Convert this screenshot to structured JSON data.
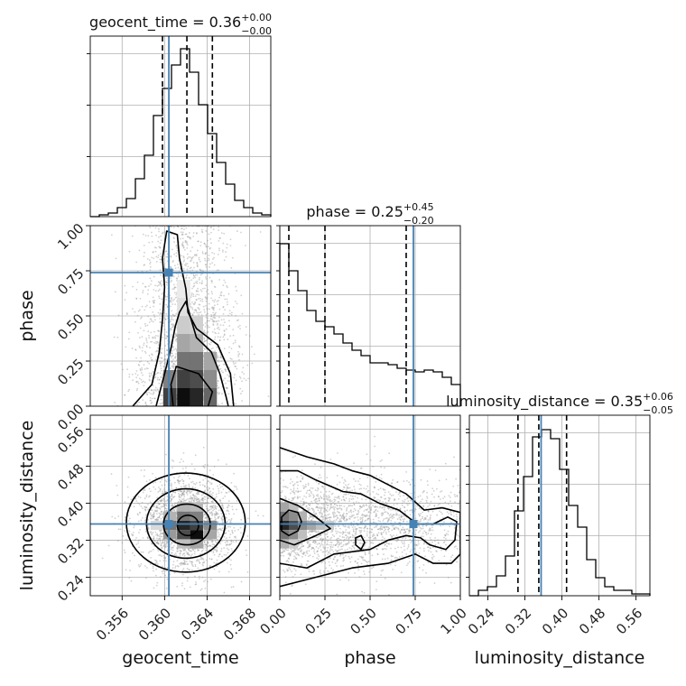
{
  "chart_data": {
    "type": "corner",
    "colors": {
      "truth": "#4682b4",
      "hist": "#000000",
      "grid": "#b0b0b0",
      "points": "#9a9a9a"
    },
    "parameters": [
      {
        "name": "geocent_time",
        "range": [
          0.353,
          0.37
        ],
        "ticks": [
          0.356,
          0.36,
          0.364,
          0.368
        ],
        "tick_labels": [
          "0.356",
          "0.360",
          "0.364",
          "0.368"
        ],
        "truth": 0.3604,
        "quantiles": [
          0.3598,
          0.3621,
          0.3645
        ],
        "title_prefix": "geocent_time = ",
        "title_median": "0.36",
        "title_plus": "+0.00",
        "title_minus": "−0.00",
        "hist_counts": [
          0,
          1,
          2,
          5,
          10,
          21,
          34,
          56,
          71,
          84,
          93,
          80,
          62,
          46,
          30,
          18,
          9,
          5,
          2,
          1
        ],
        "hist_ymax": 100
      },
      {
        "name": "phase",
        "range": [
          0,
          1
        ],
        "ticks": [
          0,
          0.25,
          0.5,
          0.75,
          1.0
        ],
        "tick_labels": [
          "0.00",
          "0.25",
          "0.50",
          "0.75",
          "1.00"
        ],
        "truth": 0.74,
        "quantiles": [
          0.05,
          0.25,
          0.7
        ],
        "title_prefix": "phase = ",
        "title_median": "0.25",
        "title_plus": "+0.45",
        "title_minus": "−0.20",
        "hist_counts": [
          90,
          75,
          64,
          53,
          47,
          44,
          40,
          35,
          31,
          28,
          24,
          24,
          23,
          21,
          20,
          19,
          20,
          19,
          16,
          12
        ],
        "hist_ymax": 100
      },
      {
        "name": "luminosity_distance",
        "range": [
          0.2,
          0.59
        ],
        "ticks": [
          0.24,
          0.32,
          0.4,
          0.48,
          0.56
        ],
        "tick_labels": [
          "0.24",
          "0.32",
          "0.40",
          "0.48",
          "0.56"
        ],
        "truth": 0.355,
        "quantiles": [
          0.305,
          0.35,
          0.41
        ],
        "title_prefix": "luminosity_distance = ",
        "title_median": "0.35",
        "title_plus": "+0.06",
        "title_minus": "−0.05",
        "hist_counts": [
          0,
          3,
          5,
          11,
          22,
          47,
          66,
          88,
          92,
          87,
          70,
          50,
          38,
          20,
          10,
          5,
          3,
          3,
          1,
          1
        ],
        "hist_ymax": 100
      }
    ],
    "pairs": [
      {
        "x_param": "geocent_time",
        "y_param": "phase",
        "cells": [
          {
            "x": 0.3605,
            "y": 0.05,
            "v": 0.75
          },
          {
            "x": 0.3618,
            "y": 0.05,
            "v": 0.95
          },
          {
            "x": 0.363,
            "y": 0.05,
            "v": 0.85
          },
          {
            "x": 0.3643,
            "y": 0.05,
            "v": 0.6
          },
          {
            "x": 0.3618,
            "y": 0.15,
            "v": 0.75
          },
          {
            "x": 0.363,
            "y": 0.15,
            "v": 0.7
          },
          {
            "x": 0.3643,
            "y": 0.15,
            "v": 0.45
          },
          {
            "x": 0.3605,
            "y": 0.15,
            "v": 0.5
          },
          {
            "x": 0.3618,
            "y": 0.25,
            "v": 0.55
          },
          {
            "x": 0.363,
            "y": 0.25,
            "v": 0.55
          },
          {
            "x": 0.3643,
            "y": 0.25,
            "v": 0.35
          },
          {
            "x": 0.3618,
            "y": 0.35,
            "v": 0.35
          },
          {
            "x": 0.363,
            "y": 0.35,
            "v": 0.3
          },
          {
            "x": 0.3618,
            "y": 0.45,
            "v": 0.2
          },
          {
            "x": 0.363,
            "y": 0.45,
            "v": 0.18
          },
          {
            "x": 0.3618,
            "y": 0.55,
            "v": 0.12
          },
          {
            "x": 0.3618,
            "y": 0.65,
            "v": 0.08
          },
          {
            "x": 0.3605,
            "y": 0.05,
            "v": 0.75
          }
        ],
        "contours": [
          [
            [
              0.3608,
              0.0
            ],
            [
              0.3606,
              0.12
            ],
            [
              0.3611,
              0.22
            ],
            [
              0.3632,
              0.18
            ],
            [
              0.3645,
              0.08
            ],
            [
              0.3641,
              0.0
            ]
          ],
          [
            [
              0.3592,
              0.0
            ],
            [
              0.36,
              0.18
            ],
            [
              0.3606,
              0.32
            ],
            [
              0.361,
              0.44
            ],
            [
              0.3614,
              0.52
            ],
            [
              0.362,
              0.58
            ],
            [
              0.3624,
              0.5
            ],
            [
              0.363,
              0.38
            ],
            [
              0.3644,
              0.3
            ],
            [
              0.3652,
              0.18
            ],
            [
              0.3658,
              0.05
            ],
            [
              0.366,
              0.0
            ]
          ],
          [
            [
              0.357,
              0.0
            ],
            [
              0.3588,
              0.12
            ],
            [
              0.3595,
              0.3
            ],
            [
              0.3598,
              0.48
            ],
            [
              0.36,
              0.66
            ],
            [
              0.3598,
              0.82
            ],
            [
              0.3602,
              0.97
            ],
            [
              0.3612,
              0.95
            ],
            [
              0.3614,
              0.82
            ],
            [
              0.362,
              0.65
            ],
            [
              0.3622,
              0.52
            ],
            [
              0.363,
              0.43
            ],
            [
              0.365,
              0.34
            ],
            [
              0.3662,
              0.18
            ],
            [
              0.3665,
              0.0
            ]
          ]
        ],
        "n_points": 2200,
        "x_mean": 0.3621,
        "x_sd": 0.0022,
        "y_kind": "halfnormal",
        "y_scale": 0.45
      },
      {
        "x_param": "geocent_time",
        "y_param": "luminosity_distance",
        "cells": [
          {
            "x": 0.3618,
            "y": 0.352,
            "v": 0.85
          },
          {
            "x": 0.363,
            "y": 0.332,
            "v": 0.95
          },
          {
            "x": 0.3618,
            "y": 0.332,
            "v": 0.7
          },
          {
            "x": 0.363,
            "y": 0.352,
            "v": 0.75
          },
          {
            "x": 0.3605,
            "y": 0.352,
            "v": 0.55
          },
          {
            "x": 0.3643,
            "y": 0.352,
            "v": 0.45
          },
          {
            "x": 0.3618,
            "y": 0.372,
            "v": 0.55
          },
          {
            "x": 0.363,
            "y": 0.372,
            "v": 0.5
          },
          {
            "x": 0.3605,
            "y": 0.332,
            "v": 0.4
          },
          {
            "x": 0.3643,
            "y": 0.332,
            "v": 0.35
          },
          {
            "x": 0.3605,
            "y": 0.372,
            "v": 0.3
          },
          {
            "x": 0.3618,
            "y": 0.392,
            "v": 0.3
          },
          {
            "x": 0.363,
            "y": 0.392,
            "v": 0.28
          },
          {
            "x": 0.363,
            "y": 0.312,
            "v": 0.35
          },
          {
            "x": 0.3618,
            "y": 0.312,
            "v": 0.25
          },
          {
            "x": 0.3593,
            "y": 0.352,
            "v": 0.15
          }
        ],
        "ellipses": [
          {
            "cx": 0.3622,
            "cy": 0.352,
            "rx": 0.001,
            "ry": 0.022
          },
          {
            "cx": 0.3621,
            "cy": 0.354,
            "rx": 0.0022,
            "ry": 0.044
          },
          {
            "cx": 0.362,
            "cy": 0.356,
            "rx": 0.0037,
            "ry": 0.075
          },
          {
            "cx": 0.362,
            "cy": 0.358,
            "rx": 0.0056,
            "ry": 0.107
          }
        ],
        "n_points": 2200,
        "x_mean": 0.3621,
        "x_sd": 0.0022,
        "y_kind": "normal",
        "y_mean": 0.355,
        "y_sd": 0.05
      },
      {
        "x_param": "phase",
        "y_param": "luminosity_distance",
        "cells": [
          {
            "x": 0.025,
            "y": 0.352,
            "v": 0.85
          },
          {
            "x": 0.075,
            "y": 0.352,
            "v": 0.7
          },
          {
            "x": 0.025,
            "y": 0.372,
            "v": 0.55
          },
          {
            "x": 0.025,
            "y": 0.332,
            "v": 0.55
          },
          {
            "x": 0.075,
            "y": 0.372,
            "v": 0.45
          },
          {
            "x": 0.075,
            "y": 0.332,
            "v": 0.45
          },
          {
            "x": 0.125,
            "y": 0.352,
            "v": 0.45
          },
          {
            "x": 0.175,
            "y": 0.352,
            "v": 0.35
          },
          {
            "x": 0.125,
            "y": 0.372,
            "v": 0.3
          },
          {
            "x": 0.025,
            "y": 0.392,
            "v": 0.35
          },
          {
            "x": 0.075,
            "y": 0.392,
            "v": 0.25
          },
          {
            "x": 0.225,
            "y": 0.352,
            "v": 0.25
          },
          {
            "x": 0.275,
            "y": 0.352,
            "v": 0.2
          },
          {
            "x": 0.125,
            "y": 0.332,
            "v": 0.25
          },
          {
            "x": 0.025,
            "y": 0.312,
            "v": 0.3
          },
          {
            "x": 0.075,
            "y": 0.312,
            "v": 0.2
          }
        ],
        "contours": [
          [
            [
              0.01,
              0.34
            ],
            [
              0.05,
              0.33
            ],
            [
              0.1,
              0.34
            ],
            [
              0.12,
              0.36
            ],
            [
              0.1,
              0.38
            ],
            [
              0.05,
              0.385
            ],
            [
              0.01,
              0.37
            ]
          ],
          [
            [
              0.0,
              0.32
            ],
            [
              0.08,
              0.31
            ],
            [
              0.2,
              0.33
            ],
            [
              0.28,
              0.345
            ],
            [
              0.2,
              0.37
            ],
            [
              0.1,
              0.395
            ],
            [
              0.0,
              0.41
            ]
          ],
          [
            [
              0.0,
              0.27
            ],
            [
              0.15,
              0.26
            ],
            [
              0.3,
              0.29
            ],
            [
              0.5,
              0.3
            ],
            [
              0.6,
              0.32
            ],
            [
              0.7,
              0.33
            ],
            [
              0.78,
              0.325
            ],
            [
              0.83,
              0.31
            ],
            [
              0.92,
              0.3
            ],
            [
              0.97,
              0.32
            ],
            [
              0.98,
              0.36
            ],
            [
              0.93,
              0.37
            ],
            [
              0.85,
              0.355
            ],
            [
              0.76,
              0.355
            ],
            [
              0.66,
              0.385
            ],
            [
              0.55,
              0.4
            ],
            [
              0.45,
              0.42
            ],
            [
              0.35,
              0.425
            ],
            [
              0.2,
              0.45
            ],
            [
              0.1,
              0.47
            ],
            [
              0.0,
              0.47
            ]
          ],
          [
            [
              0.0,
              0.22
            ],
            [
              0.2,
              0.24
            ],
            [
              0.4,
              0.26
            ],
            [
              0.6,
              0.27
            ],
            [
              0.75,
              0.29
            ],
            [
              0.85,
              0.27
            ],
            [
              0.95,
              0.27
            ],
            [
              1.0,
              0.29
            ],
            [
              1.0,
              0.38
            ],
            [
              0.9,
              0.39
            ],
            [
              0.8,
              0.385
            ],
            [
              0.7,
              0.42
            ],
            [
              0.6,
              0.44
            ],
            [
              0.5,
              0.46
            ],
            [
              0.4,
              0.47
            ],
            [
              0.3,
              0.485
            ],
            [
              0.15,
              0.5
            ],
            [
              0.0,
              0.52
            ]
          ]
        ],
        "extra_contours": [
          [
            [
              0.42,
              0.325
            ],
            [
              0.45,
              0.33
            ],
            [
              0.47,
              0.315
            ],
            [
              0.45,
              0.3
            ],
            [
              0.42,
              0.31
            ]
          ]
        ],
        "n_points": 2200,
        "x_kind": "halfnormal",
        "x_scale": 0.45,
        "y_kind": "normal",
        "y_mean": 0.355,
        "y_sd": 0.05
      }
    ]
  }
}
